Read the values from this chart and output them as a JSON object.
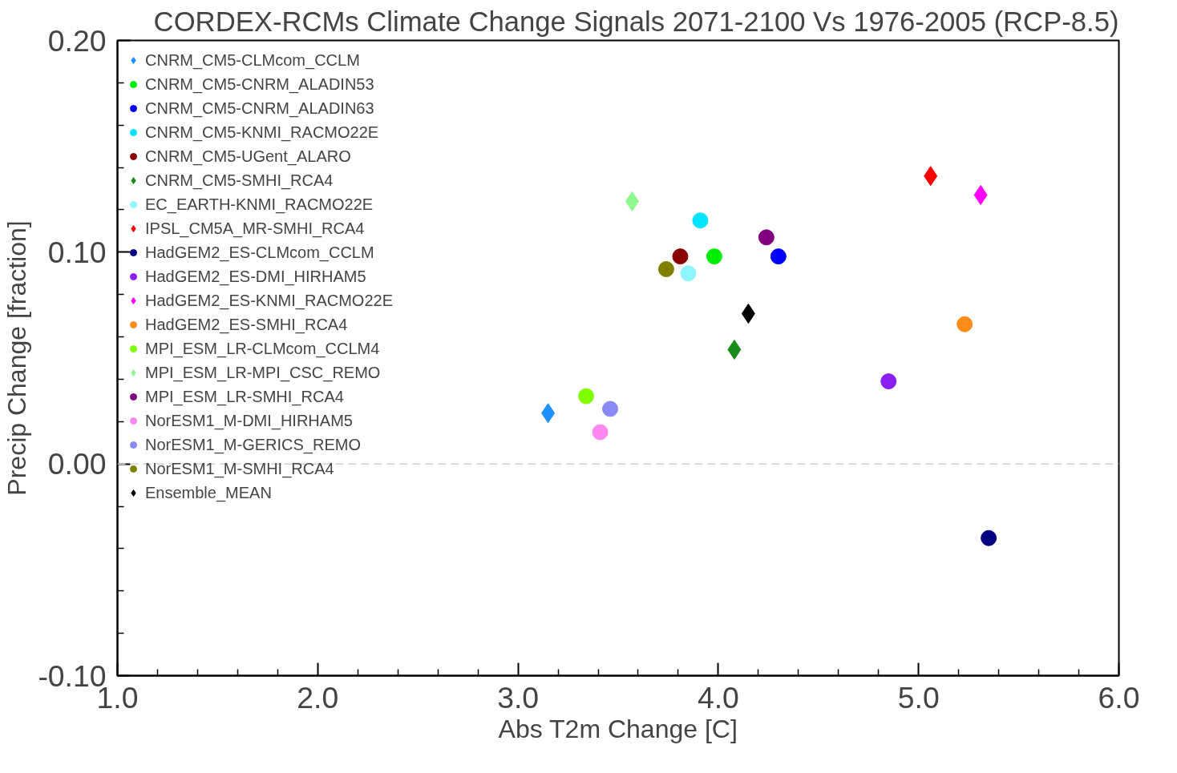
{
  "chart_data": {
    "type": "scatter",
    "title": "CORDEX-RCMs Climate Change Signals 2071-2100 Vs 1976-2005 (RCP-8.5)",
    "xlabel": "Abs T2m Change [C]",
    "ylabel": "Precip Change [fraction]",
    "xlim": [
      1.0,
      6.0
    ],
    "ylim": [
      -0.1,
      0.2
    ],
    "xticks": [
      {
        "value": 1.0,
        "label": "1.0"
      },
      {
        "value": 1.2,
        "label": null
      },
      {
        "value": 1.4,
        "label": null
      },
      {
        "value": 1.6,
        "label": null
      },
      {
        "value": 1.8,
        "label": null
      },
      {
        "value": 2.0,
        "label": "2.0"
      },
      {
        "value": 2.2,
        "label": null
      },
      {
        "value": 2.4,
        "label": null
      },
      {
        "value": 2.6,
        "label": null
      },
      {
        "value": 2.8,
        "label": null
      },
      {
        "value": 3.0,
        "label": "3.0"
      },
      {
        "value": 3.2,
        "label": null
      },
      {
        "value": 3.4,
        "label": null
      },
      {
        "value": 3.6,
        "label": null
      },
      {
        "value": 3.8,
        "label": null
      },
      {
        "value": 4.0,
        "label": "4.0"
      },
      {
        "value": 4.2,
        "label": null
      },
      {
        "value": 4.4,
        "label": null
      },
      {
        "value": 4.6,
        "label": null
      },
      {
        "value": 4.8,
        "label": null
      },
      {
        "value": 5.0,
        "label": "5.0"
      },
      {
        "value": 5.2,
        "label": null
      },
      {
        "value": 5.4,
        "label": null
      },
      {
        "value": 5.6,
        "label": null
      },
      {
        "value": 5.8,
        "label": null
      },
      {
        "value": 6.0,
        "label": "6.0"
      }
    ],
    "yticks": [
      {
        "value": -0.1,
        "label": "-0.10"
      },
      {
        "value": -0.08,
        "label": null
      },
      {
        "value": -0.06,
        "label": null
      },
      {
        "value": -0.04,
        "label": null
      },
      {
        "value": -0.02,
        "label": null
      },
      {
        "value": 0.0,
        "label": "0.00"
      },
      {
        "value": 0.02,
        "label": null
      },
      {
        "value": 0.04,
        "label": null
      },
      {
        "value": 0.06,
        "label": null
      },
      {
        "value": 0.08,
        "label": null
      },
      {
        "value": 0.1,
        "label": "0.10"
      },
      {
        "value": 0.12,
        "label": null
      },
      {
        "value": 0.14,
        "label": null
      },
      {
        "value": 0.16,
        "label": null
      },
      {
        "value": 0.18,
        "label": null
      },
      {
        "value": 0.2,
        "label": "0.20"
      }
    ],
    "grid": false,
    "legend": "top left",
    "ref_lines": [
      {
        "axis": "y",
        "value": 0.0,
        "label": null,
        "color": "#d0d0d0",
        "line_style": "dashed"
      }
    ],
    "series": [
      {
        "name": "CNRM_CM5-CLMcom_CCLM",
        "color": "#1e90ff",
        "marker": "diamond",
        "x": [
          3.15
        ],
        "values": [
          0.024
        ]
      },
      {
        "name": "CNRM_CM5-CNRM_ALADIN53",
        "color": "#00ee00",
        "marker": "circle",
        "x": [
          3.98
        ],
        "values": [
          0.098
        ]
      },
      {
        "name": "CNRM_CM5-CNRM_ALADIN63",
        "color": "#0000ff",
        "marker": "circle",
        "x": [
          4.3
        ],
        "values": [
          0.098
        ]
      },
      {
        "name": "CNRM_CM5-KNMI_RACMO22E",
        "color": "#00e5ff",
        "marker": "circle",
        "x": [
          3.91
        ],
        "values": [
          0.115
        ]
      },
      {
        "name": "CNRM_CM5-UGent_ALARO",
        "color": "#8b0000",
        "marker": "circle",
        "x": [
          3.81
        ],
        "values": [
          0.098
        ]
      },
      {
        "name": "CNRM_CM5-SMHI_RCA4",
        "color": "#1a8c1a",
        "marker": "diamond",
        "x": [
          4.08
        ],
        "values": [
          0.054
        ]
      },
      {
        "name": "EC_EARTH-KNMI_RACMO22E",
        "color": "#8ff5ff",
        "marker": "circle",
        "x": [
          3.85
        ],
        "values": [
          0.09
        ]
      },
      {
        "name": "IPSL_CM5A_MR-SMHI_RCA4",
        "color": "#ff0000",
        "marker": "diamond",
        "x": [
          5.06
        ],
        "values": [
          0.136
        ]
      },
      {
        "name": "HadGEM2_ES-CLMcom_CCLM",
        "color": "#000080",
        "marker": "circle",
        "x": [
          5.35
        ],
        "values": [
          -0.035
        ]
      },
      {
        "name": "HadGEM2_ES-DMI_HIRHAM5",
        "color": "#8a1ff0",
        "marker": "circle",
        "x": [
          4.85
        ],
        "values": [
          0.039
        ]
      },
      {
        "name": "HadGEM2_ES-KNMI_RACMO22E",
        "color": "#ff00ff",
        "marker": "diamond",
        "x": [
          5.31
        ],
        "values": [
          0.127
        ]
      },
      {
        "name": "HadGEM2_ES-SMHI_RCA4",
        "color": "#ff8c1a",
        "marker": "circle",
        "x": [
          5.23
        ],
        "values": [
          0.066
        ]
      },
      {
        "name": "MPI_ESM_LR-CLMcom_CCLM4",
        "color": "#7fff00",
        "marker": "circle",
        "x": [
          3.34
        ],
        "values": [
          0.032
        ]
      },
      {
        "name": "MPI_ESM_LR-MPI_CSC_REMO",
        "color": "#90f890",
        "marker": "diamond",
        "x": [
          3.57
        ],
        "values": [
          0.124
        ]
      },
      {
        "name": "MPI_ESM_LR-SMHI_RCA4",
        "color": "#800080",
        "marker": "circle",
        "x": [
          4.24
        ],
        "values": [
          0.107
        ]
      },
      {
        "name": "NorESM1_M-DMI_HIRHAM5",
        "color": "#ff88ee",
        "marker": "circle",
        "x": [
          3.41
        ],
        "values": [
          0.015
        ]
      },
      {
        "name": "NorESM1_M-GERICS_REMO",
        "color": "#8a8af5",
        "marker": "circle",
        "x": [
          3.46
        ],
        "values": [
          0.026
        ]
      },
      {
        "name": "NorESM1_M-SMHI_RCA4",
        "color": "#808000",
        "marker": "circle",
        "x": [
          3.74
        ],
        "values": [
          0.092
        ]
      },
      {
        "name": "Ensemble_MEAN",
        "color": "#000000",
        "marker": "diamond",
        "x": [
          4.15
        ],
        "values": [
          0.071
        ]
      }
    ]
  }
}
